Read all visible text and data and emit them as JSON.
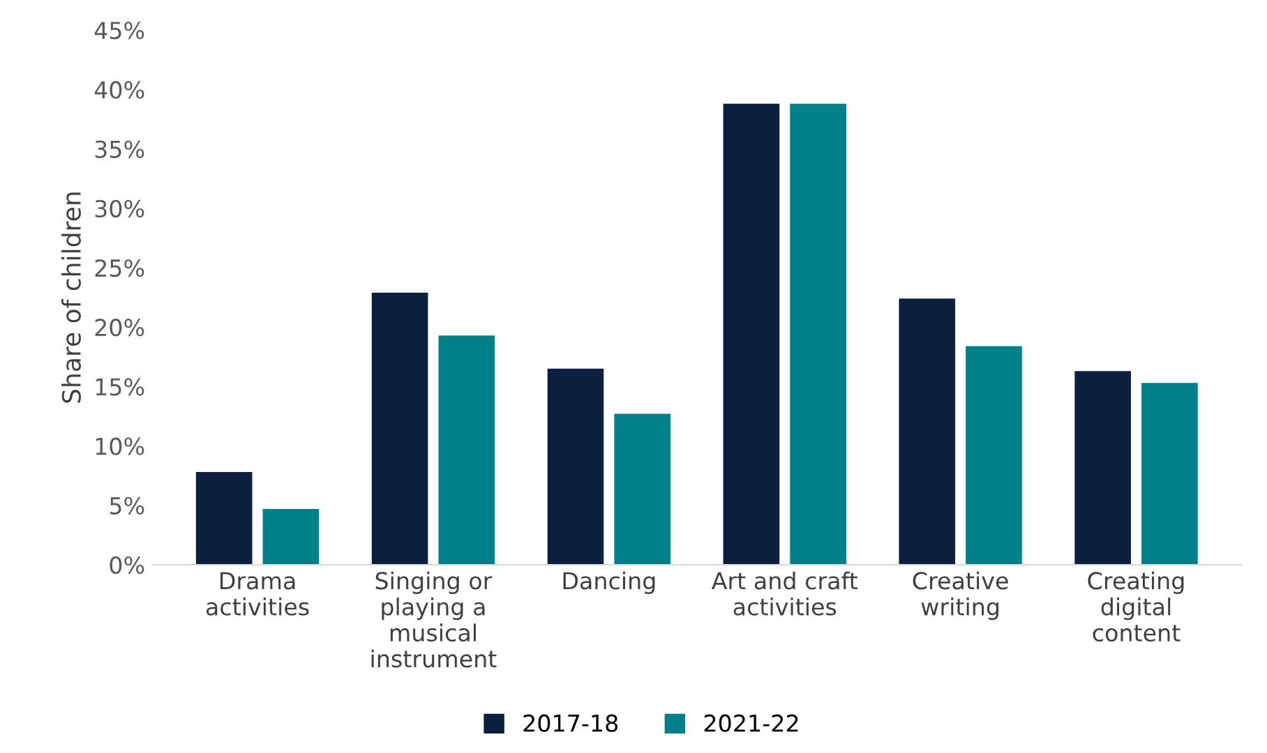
{
  "chart_data": {
    "type": "bar",
    "ylabel": "Share of children",
    "categories": [
      "Drama\nactivities",
      "Singing or\nplaying a\nmusical\ninstrument",
      "Dancing",
      "Art and craft\nactivities",
      "Creative\nwriting",
      "Creating\ndigital\ncontent"
    ],
    "series": [
      {
        "name": "2017-18",
        "color": "#0b1f3f",
        "values": [
          7.8,
          22.9,
          16.5,
          38.8,
          22.4,
          16.3
        ]
      },
      {
        "name": "2021-22",
        "color": "#00818a",
        "values": [
          4.7,
          19.3,
          12.7,
          38.8,
          18.4,
          15.3
        ]
      }
    ],
    "ylim": [
      0,
      45
    ],
    "yticks": [
      {
        "value": 0,
        "label": "0%"
      },
      {
        "value": 5,
        "label": "5%"
      },
      {
        "value": 10,
        "label": "10%"
      },
      {
        "value": 15,
        "label": "15%"
      },
      {
        "value": 20,
        "label": "20%"
      },
      {
        "value": 25,
        "label": "25%"
      },
      {
        "value": 30,
        "label": "30%"
      },
      {
        "value": 35,
        "label": "35%"
      },
      {
        "value": 40,
        "label": "40%"
      },
      {
        "value": 45,
        "label": "45%"
      }
    ],
    "grid": false,
    "legend": "bottom"
  }
}
